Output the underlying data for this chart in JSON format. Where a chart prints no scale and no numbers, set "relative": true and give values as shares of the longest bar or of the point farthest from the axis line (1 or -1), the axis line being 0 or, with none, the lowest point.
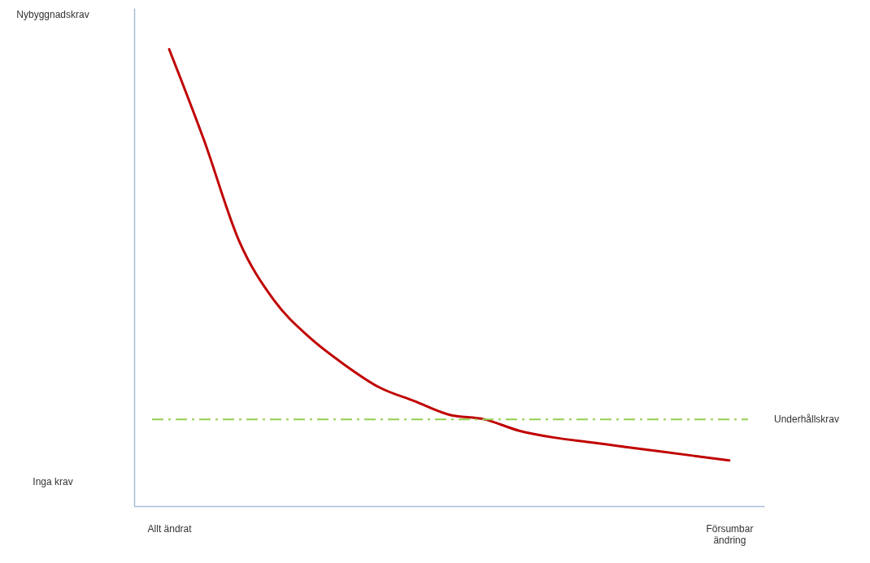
{
  "chart_data": {
    "type": "line",
    "relative": true,
    "categories": [
      "Allt ändrat",
      null,
      null,
      null,
      null,
      null,
      null,
      null,
      null,
      null,
      null,
      null,
      null,
      null,
      null,
      null,
      "Försumbar ändring"
    ],
    "series": [
      {
        "color": "#c00000",
        "values": [
          1,
          0.8,
          0.58,
          0.45,
          0.37,
          0.31,
          0.26,
          0.23,
          0.2,
          0.19,
          0.165,
          0.15,
          0.14,
          0.13,
          0.12,
          0.11,
          0.1
        ]
      }
    ],
    "ref_lines": [
      {
        "axis": "y",
        "value": 0.19,
        "label": "Underhållskrav",
        "color": "#92d050",
        "line_style": "dashdot"
      }
    ],
    "annotations": [
      "Nybyggnadskrav",
      "Inga krav"
    ],
    "marker": "none",
    "line_style": "solid"
  }
}
